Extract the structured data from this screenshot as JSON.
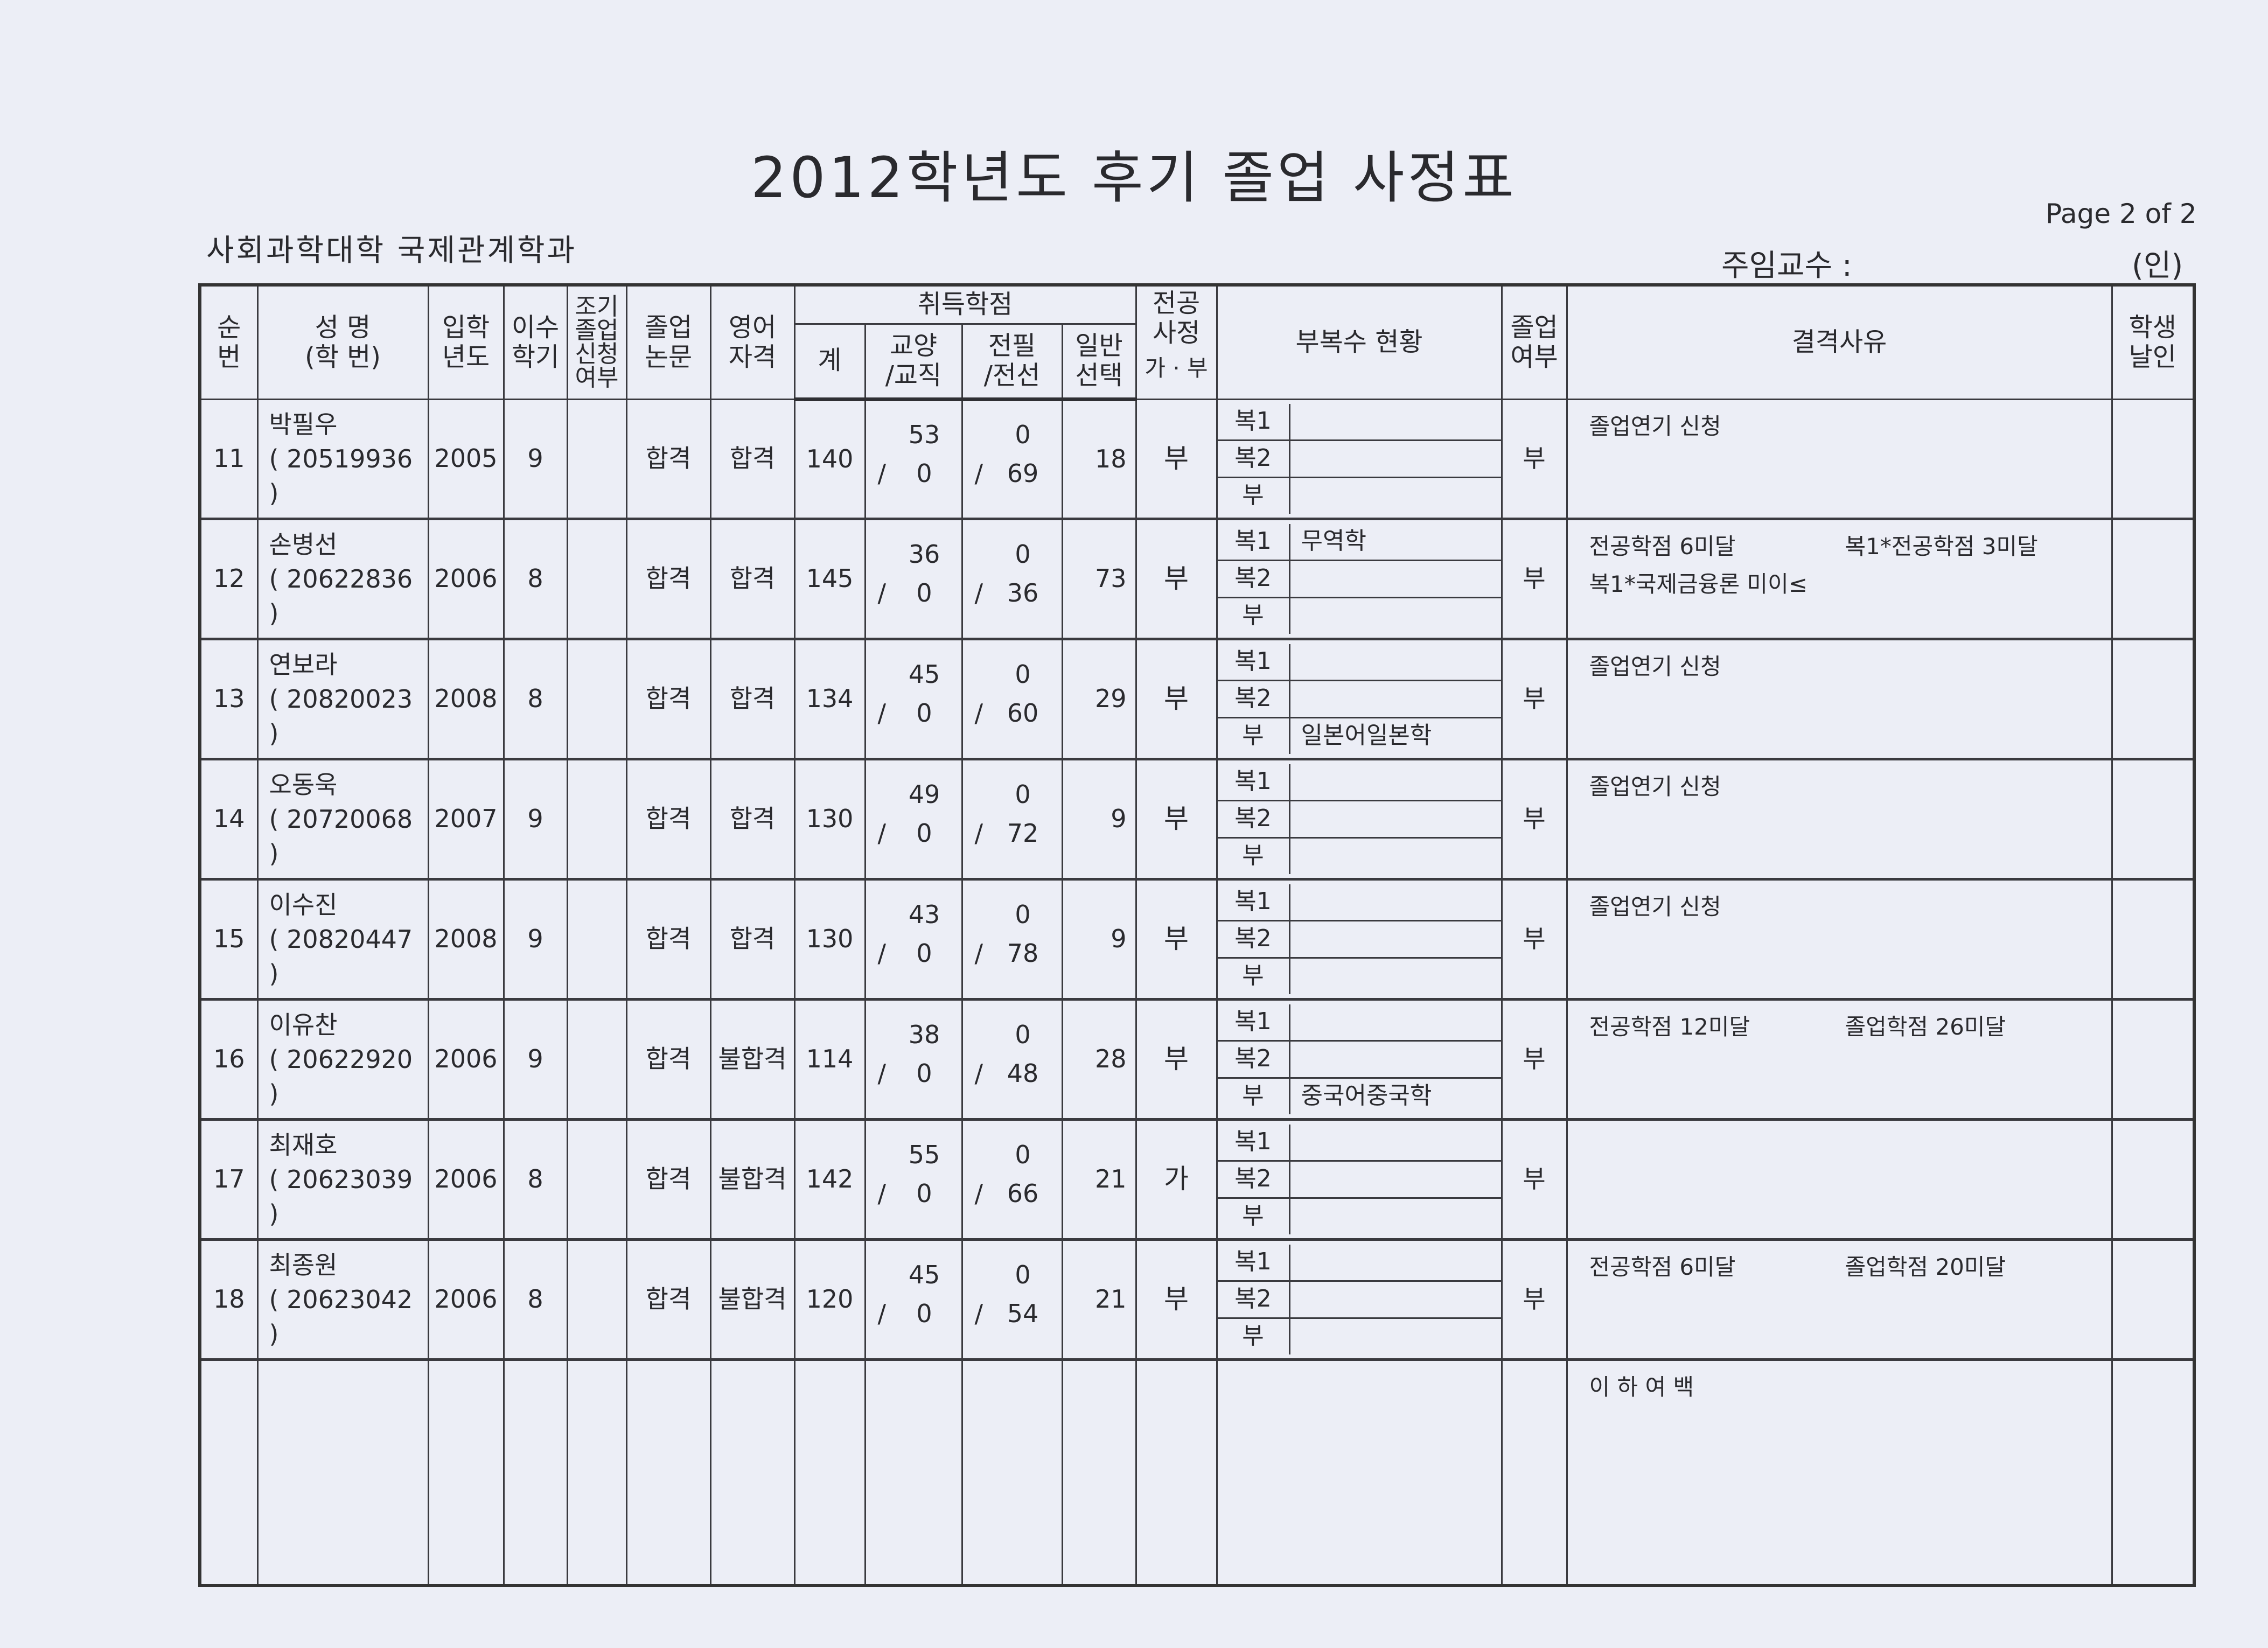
{
  "title": "2012학년도 후기  졸업 사정표",
  "page": "Page 2 of 2",
  "college": "사회과학대학   국제관계학과",
  "professor_label": "주임교수 :",
  "seal_label": "(인)",
  "headers": {
    "no": "순\n번",
    "name": "성 명\n(학 번)",
    "year": "입학\n년도",
    "semesters": "이수\n학기",
    "early": "조기\n졸업\n신청\n여부",
    "thesis": "졸업\n논문",
    "english": "영어\n자격",
    "credits": "취득학점",
    "total": "계",
    "liberal": "교양\n/교직",
    "major_req": "전필\n/전선",
    "general": "일반\n선택",
    "major_review": "전공\n사정",
    "major_review_sub": "가 · 부",
    "minors": "부복수 현황",
    "graduate": "졸업\n여부",
    "reason": "결격사유",
    "stamp": "학생\n날인"
  },
  "minor_labels": [
    "복1",
    "복2",
    "부"
  ],
  "rows": [
    {
      "no": "11",
      "name": "박필우",
      "id": "( 20519936  )",
      "year": "2005",
      "sem": "9",
      "early": "",
      "thesis": "합격",
      "english": "합격",
      "total": "140",
      "liberal": "53",
      "teach": "0",
      "major_req": "0",
      "major_sel": "69",
      "general": "18",
      "major_review": "부",
      "minors": [
        "",
        "",
        ""
      ],
      "graduate": "부",
      "reasons": [
        [
          "졸업연기 신청"
        ]
      ]
    },
    {
      "no": "12",
      "name": "손병선",
      "id": "( 20622836  )",
      "year": "2006",
      "sem": "8",
      "early": "",
      "thesis": "합격",
      "english": "합격",
      "total": "145",
      "liberal": "36",
      "teach": "0",
      "major_req": "0",
      "major_sel": "36",
      "general": "73",
      "major_review": "부",
      "minors": [
        "무역학",
        "",
        ""
      ],
      "graduate": "부",
      "reasons": [
        [
          "전공학점 6미달",
          "복1*전공학점 3미달"
        ],
        [
          "복1*국제금융론 미이≤"
        ]
      ]
    },
    {
      "no": "13",
      "name": "연보라",
      "id": "( 20820023  )",
      "year": "2008",
      "sem": "8",
      "early": "",
      "thesis": "합격",
      "english": "합격",
      "total": "134",
      "liberal": "45",
      "teach": "0",
      "major_req": "0",
      "major_sel": "60",
      "general": "29",
      "major_review": "부",
      "minors": [
        "",
        "",
        "일본어일본학"
      ],
      "graduate": "부",
      "reasons": [
        [
          "졸업연기 신청"
        ]
      ]
    },
    {
      "no": "14",
      "name": "오동욱",
      "id": "( 20720068  )",
      "year": "2007",
      "sem": "9",
      "early": "",
      "thesis": "합격",
      "english": "합격",
      "total": "130",
      "liberal": "49",
      "teach": "0",
      "major_req": "0",
      "major_sel": "72",
      "general": "9",
      "major_review": "부",
      "minors": [
        "",
        "",
        ""
      ],
      "graduate": "부",
      "reasons": [
        [
          "졸업연기 신청"
        ]
      ]
    },
    {
      "no": "15",
      "name": "이수진",
      "id": "( 20820447  )",
      "year": "2008",
      "sem": "9",
      "early": "",
      "thesis": "합격",
      "english": "합격",
      "total": "130",
      "liberal": "43",
      "teach": "0",
      "major_req": "0",
      "major_sel": "78",
      "general": "9",
      "major_review": "부",
      "minors": [
        "",
        "",
        ""
      ],
      "graduate": "부",
      "reasons": [
        [
          "졸업연기 신청"
        ]
      ]
    },
    {
      "no": "16",
      "name": "이유찬",
      "id": "( 20622920  )",
      "year": "2006",
      "sem": "9",
      "early": "",
      "thesis": "합격",
      "english": "불합격",
      "total": "114",
      "liberal": "38",
      "teach": "0",
      "major_req": "0",
      "major_sel": "48",
      "general": "28",
      "major_review": "부",
      "minors": [
        "",
        "",
        "중국어중국학"
      ],
      "graduate": "부",
      "reasons": [
        [
          "전공학점 12미달",
          "졸업학점 26미달"
        ]
      ]
    },
    {
      "no": "17",
      "name": "최재호",
      "id": "( 20623039  )",
      "year": "2006",
      "sem": "8",
      "early": "",
      "thesis": "합격",
      "english": "불합격",
      "total": "142",
      "liberal": "55",
      "teach": "0",
      "major_req": "0",
      "major_sel": "66",
      "general": "21",
      "major_review": "가",
      "minors": [
        "",
        "",
        ""
      ],
      "graduate": "부",
      "reasons": []
    },
    {
      "no": "18",
      "name": "최종원",
      "id": "( 20623042  )",
      "year": "2006",
      "sem": "8",
      "early": "",
      "thesis": "합격",
      "english": "불합격",
      "total": "120",
      "liberal": "45",
      "teach": "0",
      "major_req": "0",
      "major_sel": "54",
      "general": "21",
      "major_review": "부",
      "minors": [
        "",
        "",
        ""
      ],
      "graduate": "부",
      "reasons": [
        [
          "전공학점 6미달",
          "졸업학점 20미달"
        ]
      ]
    }
  ],
  "blank_row_note": "이 하 여 백"
}
